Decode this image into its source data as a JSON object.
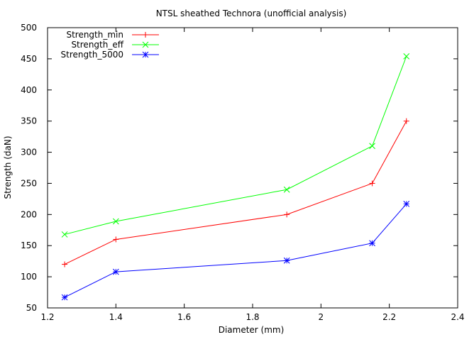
{
  "chart_data": {
    "type": "line",
    "title": "NTSL sheathed Technora (unofficial analysis)",
    "xlabel": "Diameter (mm)",
    "ylabel": "Strength (daN)",
    "xlim": [
      1.2,
      2.4
    ],
    "ylim": [
      50,
      500
    ],
    "xticks": [
      "1.2",
      "1.4",
      "1.6",
      "1.8",
      "2",
      "2.2",
      "2.4"
    ],
    "yticks": [
      "50",
      "100",
      "150",
      "200",
      "250",
      "300",
      "350",
      "400",
      "450",
      "500"
    ],
    "grid": false,
    "legend_position": "top-left",
    "x": [
      1.25,
      1.4,
      1.9,
      2.15,
      2.25
    ],
    "series": [
      {
        "name": "Strength_min",
        "color": "#ff0000",
        "marker": "plus",
        "values": [
          120,
          160,
          200,
          250,
          350
        ]
      },
      {
        "name": "Strength_eff",
        "color": "#00ff00",
        "marker": "cross",
        "values": [
          168,
          189,
          240,
          310,
          454
        ]
      },
      {
        "name": "Strength_5000",
        "color": "#0000ff",
        "marker": "star",
        "values": [
          67,
          108,
          126,
          154,
          217
        ]
      }
    ]
  }
}
